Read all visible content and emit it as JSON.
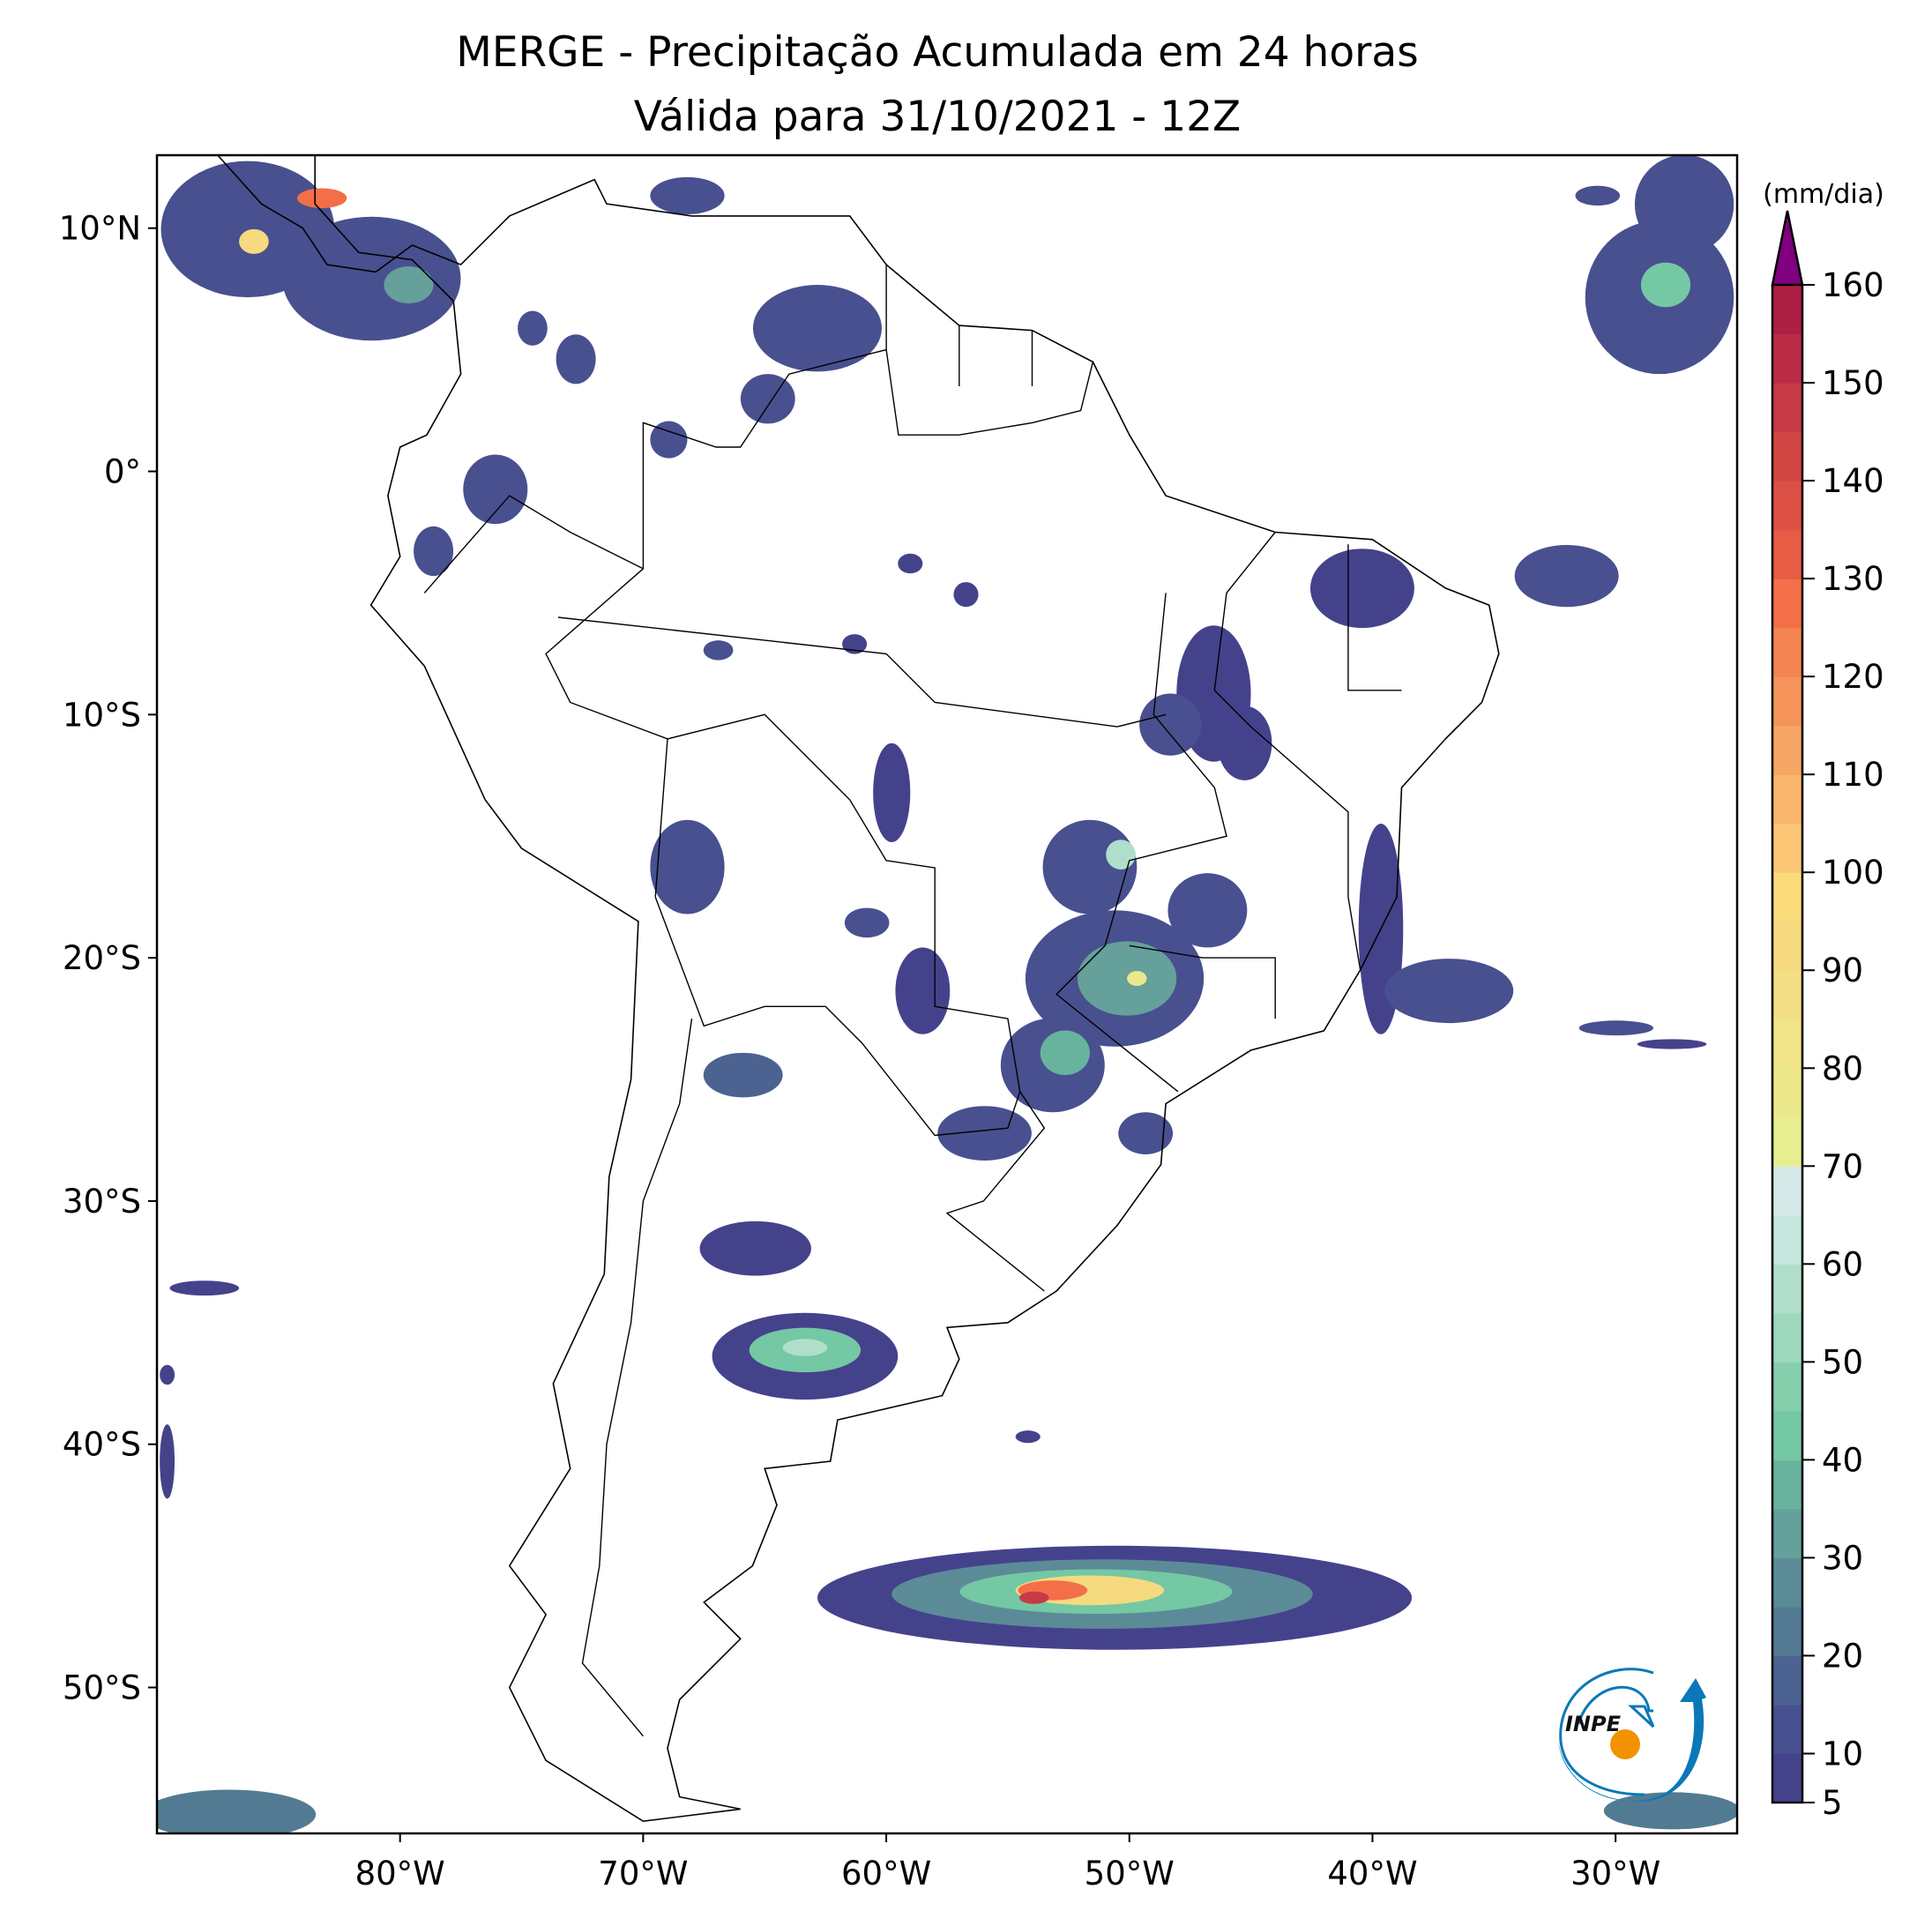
{
  "title": {
    "line1": "MERGE - Precipitação Acumulada em 24 horas",
    "line2": "Válida para 31/10/2021 - 12Z"
  },
  "map": {
    "extent_lon": [
      -90,
      -25
    ],
    "extent_lat": [
      -56,
      13
    ],
    "lat_ticks": [
      {
        "value": 10,
        "label": "10°N"
      },
      {
        "value": 0,
        "label": "0°"
      },
      {
        "value": -10,
        "label": "10°S"
      },
      {
        "value": -20,
        "label": "20°S"
      },
      {
        "value": -30,
        "label": "30°S"
      },
      {
        "value": -40,
        "label": "40°S"
      },
      {
        "value": -50,
        "label": "50°S"
      }
    ],
    "lon_ticks": [
      {
        "value": -80,
        "label": "80°W"
      },
      {
        "value": -70,
        "label": "70°W"
      },
      {
        "value": -60,
        "label": "60°W"
      },
      {
        "value": -50,
        "label": "50°W"
      },
      {
        "value": -40,
        "label": "40°W"
      },
      {
        "value": -30,
        "label": "30°W"
      }
    ]
  },
  "colorbar": {
    "unit": "(mm/dia)",
    "min": 5,
    "max": 160,
    "extend_color": "#800080",
    "tick_values": [
      5,
      10,
      20,
      30,
      40,
      50,
      60,
      70,
      80,
      90,
      100,
      110,
      120,
      130,
      140,
      150,
      160
    ],
    "tick_labels": [
      "5",
      "10",
      "20",
      "30",
      "40",
      "50",
      "60",
      "70",
      "80",
      "90",
      "100",
      "110",
      "120",
      "130",
      "140",
      "150",
      "160"
    ],
    "colors": [
      "#45428c",
      "#48508f",
      "#4c6391",
      "#527b93",
      "#5c8b98",
      "#65a09b",
      "#68b39e",
      "#74c8a4",
      "#86cfad",
      "#9dd8bc",
      "#afdfcb",
      "#c5e6dc",
      "#d7eae9",
      "#e6ee90",
      "#ebe88c",
      "#f0e38a",
      "#f3de85",
      "#f6da80",
      "#fbdc7a",
      "#fbc777",
      "#f9b66c",
      "#f7a665",
      "#f5955c",
      "#f48451",
      "#f36f47",
      "#e65c45",
      "#dc5045",
      "#d24644",
      "#c73a45",
      "#bb2b46",
      "#ae1f45"
    ]
  },
  "logo": {
    "text": "INPE"
  }
}
